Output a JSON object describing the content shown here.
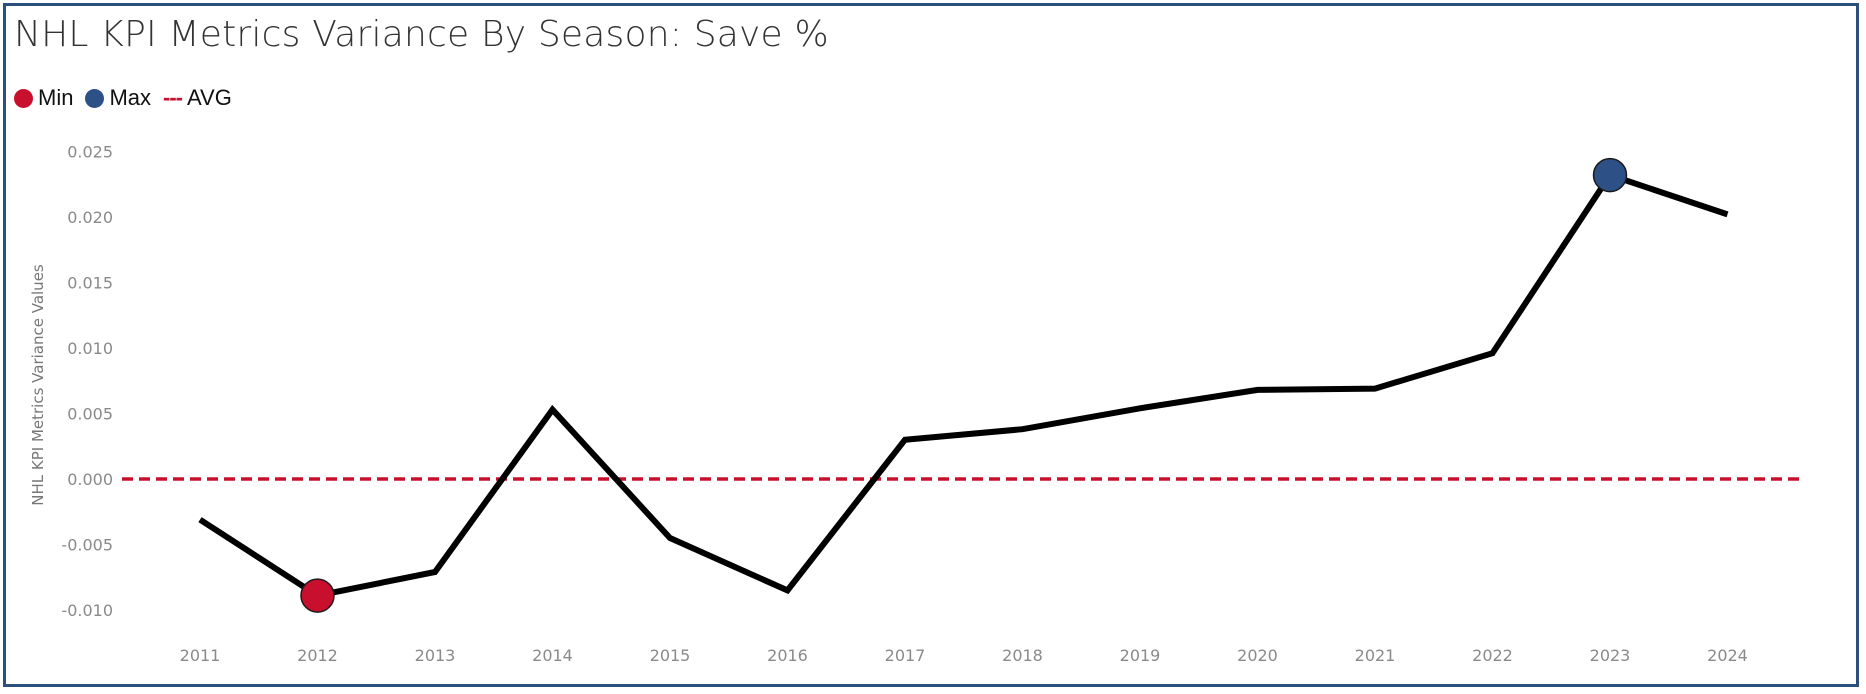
{
  "chart_data": {
    "type": "line",
    "title": "NHL KPI Metrics Variance By Season: Save %",
    "ylabel": "NHL KPI Metrics Variance Values",
    "xlabel": "",
    "x": [
      2011,
      2012,
      2013,
      2014,
      2015,
      2016,
      2017,
      2018,
      2019,
      2020,
      2021,
      2022,
      2023,
      2024
    ],
    "x_tick_labels": [
      "2011",
      "2012",
      "2013",
      "2014",
      "2015",
      "2016",
      "2017",
      "2018",
      "2019",
      "2020",
      "2021",
      "2022",
      "2023",
      "2024"
    ],
    "series": [
      {
        "values": [
          -0.0031,
          -0.0089,
          -0.0071,
          0.0053,
          -0.0045,
          -0.0085,
          0.003,
          0.0038,
          0.0054,
          0.0068,
          0.0069,
          0.0096,
          0.0232,
          0.0202
        ],
        "color": "#000000"
      }
    ],
    "average": 0.0,
    "min_point": {
      "x": 2012,
      "value": -0.0089
    },
    "max_point": {
      "x": 2023,
      "value": 0.0232
    },
    "y_ticks": [
      0.025,
      0.02,
      0.015,
      0.01,
      0.005,
      0.0,
      -0.005,
      -0.01
    ],
    "y_tick_labels": [
      "0.025",
      "0.020",
      "0.015",
      "0.010",
      "0.005",
      "0.000",
      "-0.005",
      "-0.010"
    ],
    "ylim": [
      -0.0125,
      0.0275
    ],
    "grid": false,
    "legend": {
      "position": "top-left",
      "items": [
        {
          "label": "Min",
          "kind": "dot",
          "color": "#c8102e"
        },
        {
          "label": "Max",
          "kind": "dot",
          "color": "#2d5186"
        },
        {
          "label": "AVG",
          "kind": "dash",
          "symbol": "---",
          "color": "#c8102e"
        }
      ]
    },
    "colors": {
      "line": "#000000",
      "min": "#c8102e",
      "max": "#2d5186",
      "avg": "#c8102e",
      "frame": "#2d4f7c"
    }
  }
}
